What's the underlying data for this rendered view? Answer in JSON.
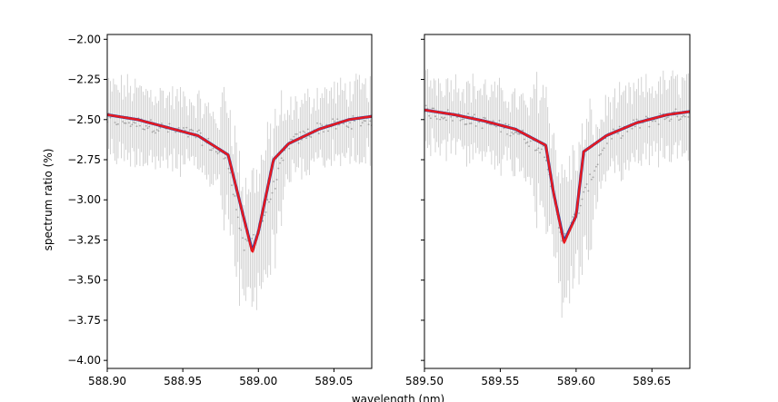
{
  "chart_data": [
    {
      "type": "line",
      "xlabel": "",
      "ylabel": "spectrum ratio (%)",
      "xlim": [
        588.9,
        589.075
      ],
      "ylim": [
        -4.05,
        -1.97
      ],
      "xticks": [
        588.9,
        588.95,
        589.0,
        589.05
      ],
      "xtick_labels": [
        "588.90",
        "588.95",
        "589.00",
        "589.05"
      ],
      "yticks": [
        -2.0,
        -2.25,
        -2.5,
        -2.75,
        -3.0,
        -3.25,
        -3.5,
        -3.75,
        -4.0
      ],
      "ytick_labels": [
        "−2.00",
        "−2.25",
        "−2.50",
        "−2.75",
        "−3.00",
        "−3.25",
        "−3.50",
        "−3.75",
        "−4.00"
      ],
      "line_center": 588.996,
      "series": [
        {
          "style": "gray-errorbars",
          "x": [
            588.9,
            588.92,
            588.94,
            588.96,
            588.98,
            588.99,
            589.0,
            589.02,
            589.04,
            589.06,
            589.075
          ],
          "values": [
            -2.5,
            -2.52,
            -2.56,
            -2.6,
            -2.75,
            -3.3,
            -3.2,
            -2.65,
            -2.55,
            -2.52,
            -2.5
          ]
        },
        {
          "style": "blue-line",
          "x": [
            588.9,
            588.92,
            588.94,
            588.96,
            588.98,
            588.99,
            588.996,
            589.0,
            589.01,
            589.02,
            589.04,
            589.06,
            589.075
          ],
          "values": [
            -2.47,
            -2.5,
            -2.55,
            -2.6,
            -2.72,
            -3.1,
            -3.32,
            -3.2,
            -2.75,
            -2.65,
            -2.56,
            -2.5,
            -2.48
          ]
        },
        {
          "style": "red-line",
          "x": [
            588.9,
            588.92,
            588.94,
            588.96,
            588.98,
            588.99,
            588.996,
            589.0,
            589.01,
            589.02,
            589.04,
            589.06,
            589.075
          ],
          "values": [
            -2.47,
            -2.5,
            -2.55,
            -2.6,
            -2.72,
            -3.1,
            -3.33,
            -3.2,
            -2.75,
            -2.65,
            -2.56,
            -2.5,
            -2.48
          ]
        }
      ]
    },
    {
      "type": "line",
      "xlabel": "",
      "ylabel": "",
      "xlim": [
        589.5,
        589.675
      ],
      "ylim": [
        -4.05,
        -1.97
      ],
      "xticks": [
        589.5,
        589.55,
        589.6,
        589.65
      ],
      "xtick_labels": [
        "589.50",
        "589.55",
        "589.60",
        "589.65"
      ],
      "yticks": [
        -2.0,
        -2.25,
        -2.5,
        -2.75,
        -3.0,
        -3.25,
        -3.5,
        -3.75,
        -4.0
      ],
      "ytick_labels": [],
      "line_center": 589.592,
      "series": [
        {
          "style": "gray-errorbars",
          "x": [
            589.5,
            589.52,
            589.54,
            589.56,
            589.58,
            589.59,
            589.6,
            589.62,
            589.64,
            589.66,
            589.675
          ],
          "values": [
            -2.45,
            -2.48,
            -2.52,
            -2.57,
            -2.7,
            -3.25,
            -3.1,
            -2.62,
            -2.53,
            -2.48,
            -2.46
          ]
        },
        {
          "style": "blue-line",
          "x": [
            589.5,
            589.52,
            589.54,
            589.56,
            589.58,
            589.585,
            589.592,
            589.6,
            589.605,
            589.62,
            589.64,
            589.66,
            589.675
          ],
          "values": [
            -2.44,
            -2.47,
            -2.51,
            -2.56,
            -2.66,
            -2.95,
            -3.26,
            -3.1,
            -2.7,
            -2.6,
            -2.52,
            -2.47,
            -2.45
          ]
        },
        {
          "style": "red-line",
          "x": [
            589.5,
            589.52,
            589.54,
            589.56,
            589.58,
            589.585,
            589.592,
            589.6,
            589.605,
            589.62,
            589.64,
            589.66,
            589.675
          ],
          "values": [
            -2.44,
            -2.47,
            -2.51,
            -2.56,
            -2.66,
            -2.95,
            -3.27,
            -3.1,
            -2.7,
            -2.6,
            -2.52,
            -2.47,
            -2.45
          ]
        }
      ]
    }
  ],
  "shared_xlabel": "wavelength (nm)",
  "colors": {
    "fit_primary": "#e8191f",
    "fit_secondary": "#2b3fa0",
    "errorbars": "#c8c8c8",
    "points": "#a0a0a0",
    "axes": "#000000"
  }
}
